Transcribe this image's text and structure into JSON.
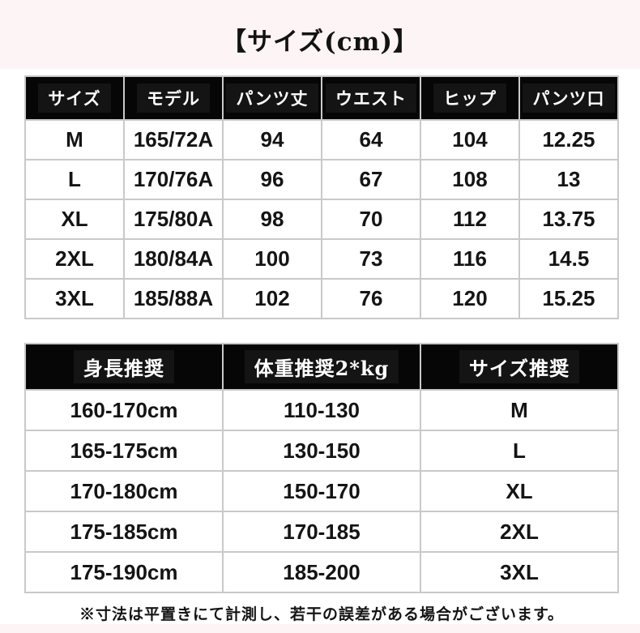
{
  "title": "【サイズ(cm)】",
  "note": "※寸法は平置きにて計測し、若干の誤差がある場合がございます。",
  "colors": {
    "background_pink": "#fdf4f6",
    "content_white": "#ffffff",
    "header_black": "#060606",
    "header_text": "#ffffff",
    "border_gray": "#c9c9c9",
    "text_black": "#141414"
  },
  "chart_data": [
    {
      "type": "table",
      "name": "size-spec-table",
      "title": "【サイズ(cm)】",
      "columns": [
        "サイズ",
        "モデル",
        "パンツ丈",
        "ウエスト",
        "ヒップ",
        "パンツ口"
      ],
      "rows": [
        [
          "M",
          "165/72A",
          "94",
          "64",
          "104",
          "12.25"
        ],
        [
          "L",
          "170/76A",
          "96",
          "67",
          "108",
          "13"
        ],
        [
          "XL",
          "175/80A",
          "98",
          "70",
          "112",
          "13.75"
        ],
        [
          "2XL",
          "180/84A",
          "100",
          "73",
          "116",
          "14.5"
        ],
        [
          "3XL",
          "185/88A",
          "102",
          "76",
          "120",
          "15.25"
        ]
      ]
    },
    {
      "type": "table",
      "name": "size-recommendation-table",
      "columns": [
        "身長推奨",
        "体重推奨2*kg",
        "サイズ推奨"
      ],
      "rows": [
        [
          "160-170cm",
          "110-130",
          "M"
        ],
        [
          "165-175cm",
          "130-150",
          "L"
        ],
        [
          "170-180cm",
          "150-170",
          "XL"
        ],
        [
          "175-185cm",
          "170-185",
          "2XL"
        ],
        [
          "175-190cm",
          "185-200",
          "3XL"
        ]
      ]
    }
  ]
}
